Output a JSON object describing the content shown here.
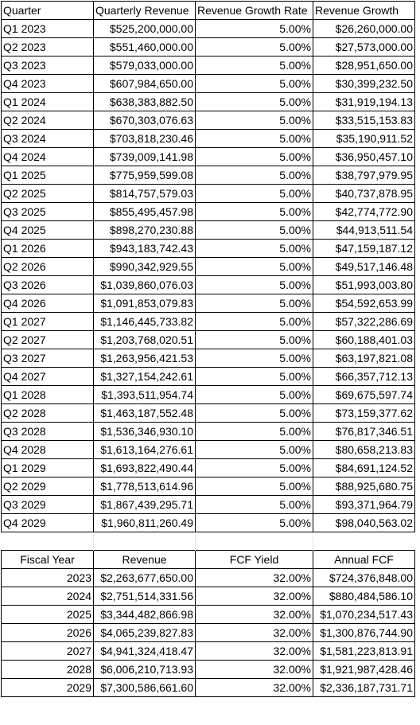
{
  "quarterly": {
    "headers": [
      "Quarter",
      "Quarterly Revenue",
      "Revenue Growth Rate",
      "Revenue Growth"
    ],
    "rows": [
      [
        "Q1 2023",
        "$525,200,000.00",
        "5.00%",
        "$26,260,000.00"
      ],
      [
        "Q2 2023",
        "$551,460,000.00",
        "5.00%",
        "$27,573,000.00"
      ],
      [
        "Q3 2023",
        "$579,033,000.00",
        "5.00%",
        "$28,951,650.00"
      ],
      [
        "Q4 2023",
        "$607,984,650.00",
        "5.00%",
        "$30,399,232.50"
      ],
      [
        "Q1 2024",
        "$638,383,882.50",
        "5.00%",
        "$31,919,194.13"
      ],
      [
        "Q2 2024",
        "$670,303,076.63",
        "5.00%",
        "$33,515,153.83"
      ],
      [
        "Q3 2024",
        "$703,818,230.46",
        "5.00%",
        "$35,190,911.52"
      ],
      [
        "Q4 2024",
        "$739,009,141.98",
        "5.00%",
        "$36,950,457.10"
      ],
      [
        "Q1 2025",
        "$775,959,599.08",
        "5.00%",
        "$38,797,979.95"
      ],
      [
        "Q2 2025",
        "$814,757,579.03",
        "5.00%",
        "$40,737,878.95"
      ],
      [
        "Q3 2025",
        "$855,495,457.98",
        "5.00%",
        "$42,774,772.90"
      ],
      [
        "Q4 2025",
        "$898,270,230.88",
        "5.00%",
        "$44,913,511.54"
      ],
      [
        "Q1 2026",
        "$943,183,742.43",
        "5.00%",
        "$47,159,187.12"
      ],
      [
        "Q2 2026",
        "$990,342,929.55",
        "5.00%",
        "$49,517,146.48"
      ],
      [
        "Q3 2026",
        "$1,039,860,076.03",
        "5.00%",
        "$51,993,003.80"
      ],
      [
        "Q4 2026",
        "$1,091,853,079.83",
        "5.00%",
        "$54,592,653.99"
      ],
      [
        "Q1 2027",
        "$1,146,445,733.82",
        "5.00%",
        "$57,322,286.69"
      ],
      [
        "Q2 2027",
        "$1,203,768,020.51",
        "5.00%",
        "$60,188,401.03"
      ],
      [
        "Q3 2027",
        "$1,263,956,421.53",
        "5.00%",
        "$63,197,821.08"
      ],
      [
        "Q4 2027",
        "$1,327,154,242.61",
        "5.00%",
        "$66,357,712.13"
      ],
      [
        "Q1 2028",
        "$1,393,511,954.74",
        "5.00%",
        "$69,675,597.74"
      ],
      [
        "Q2 2028",
        "$1,463,187,552.48",
        "5.00%",
        "$73,159,377.62"
      ],
      [
        "Q3 2028",
        "$1,536,346,930.10",
        "5.00%",
        "$76,817,346.51"
      ],
      [
        "Q4 2028",
        "$1,613,164,276.61",
        "5.00%",
        "$80,658,213.83"
      ],
      [
        "Q1 2029",
        "$1,693,822,490.44",
        "5.00%",
        "$84,691,124.52"
      ],
      [
        "Q2 2029",
        "$1,778,513,614.96",
        "5.00%",
        "$88,925,680.75"
      ],
      [
        "Q3 2029",
        "$1,867,439,295.71",
        "5.00%",
        "$93,371,964.79"
      ],
      [
        "Q4 2029",
        "$1,960,811,260.49",
        "5.00%",
        "$98,040,563.02"
      ]
    ]
  },
  "annual": {
    "headers": [
      "Fiscal Year",
      "Revenue",
      "FCF Yield",
      "Annual FCF"
    ],
    "rows": [
      [
        "2023",
        "$2,263,677,650.00",
        "32.00%",
        "$724,376,848.00"
      ],
      [
        "2024",
        "$2,751,514,331.56",
        "32.00%",
        "$880,484,586.10"
      ],
      [
        "2025",
        "$3,344,482,866.98",
        "32.00%",
        "$1,070,234,517.43"
      ],
      [
        "2026",
        "$4,065,239,827.83",
        "32.00%",
        "$1,300,876,744.90"
      ],
      [
        "2027",
        "$4,941,324,418.47",
        "32.00%",
        "$1,581,223,813.91"
      ],
      [
        "2028",
        "$6,006,210,713.93",
        "32.00%",
        "$1,921,987,428.46"
      ],
      [
        "2029",
        "$7,300,586,661.60",
        "32.00%",
        "$2,336,187,731.71"
      ]
    ]
  }
}
